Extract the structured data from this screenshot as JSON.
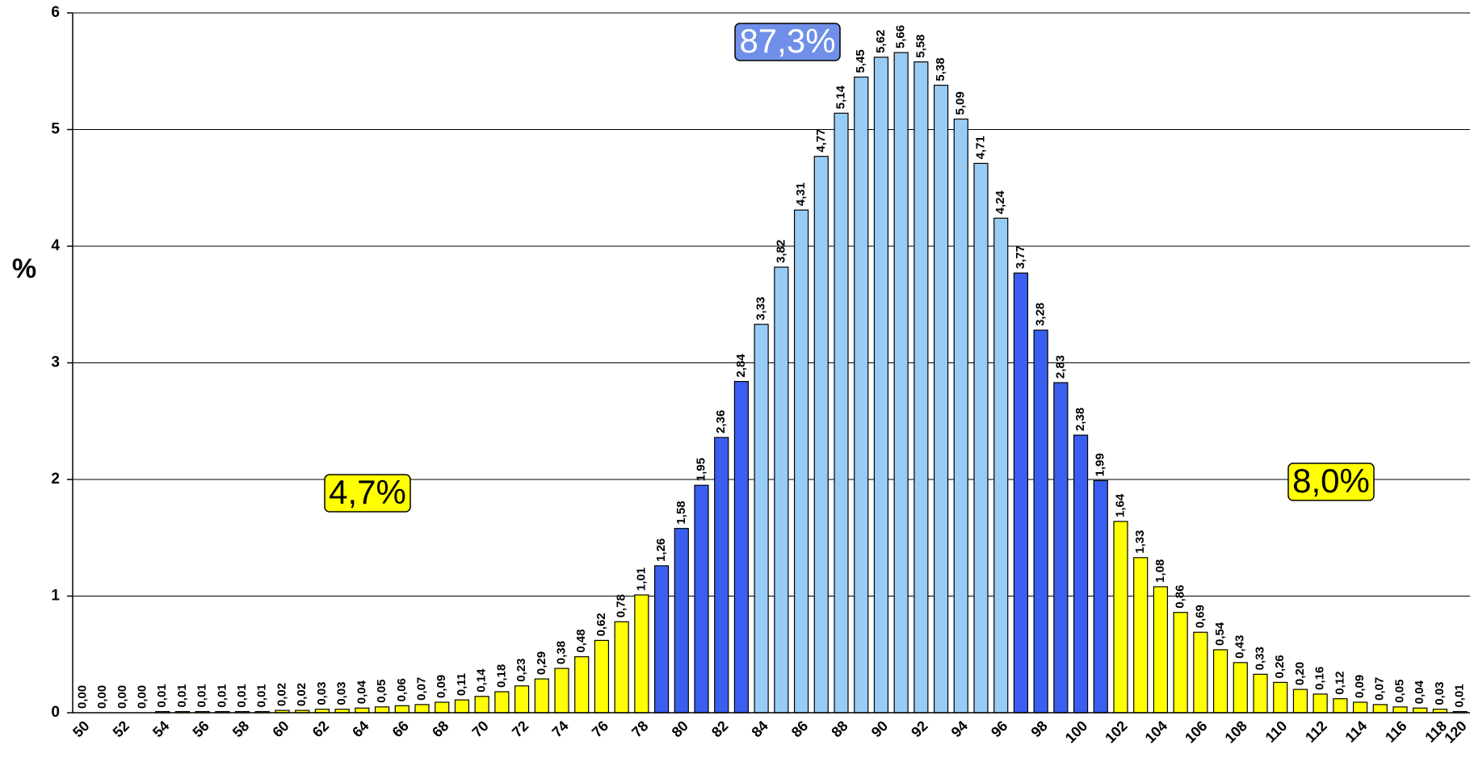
{
  "chart_data": {
    "type": "bar",
    "y_label": "%",
    "categories": [
      "50",
      null,
      "52",
      null,
      "54",
      null,
      "56",
      null,
      "58",
      null,
      "60",
      null,
      "62",
      null,
      "64",
      null,
      "66",
      null,
      "68",
      null,
      "70",
      null,
      "72",
      null,
      "74",
      null,
      "76",
      null,
      "78",
      null,
      "80",
      null,
      "82",
      null,
      "84",
      null,
      "86",
      null,
      "88",
      null,
      "90",
      null,
      "92",
      null,
      "94",
      null,
      "96",
      null,
      "98",
      null,
      "100",
      null,
      "102",
      null,
      "104",
      null,
      "106",
      null,
      "108",
      null,
      "110",
      null,
      "112",
      null,
      "114",
      null,
      "116",
      null,
      "118",
      "120"
    ],
    "values": [
      0,
      0,
      0,
      0,
      0.01,
      0.01,
      0.01,
      0.01,
      0.01,
      0.01,
      0.02,
      0.02,
      0.03,
      0.03,
      0.04,
      0.05,
      0.06,
      0.07,
      0.09,
      0.11,
      0.14,
      0.18,
      0.23,
      0.29,
      0.38,
      0.48,
      0.62,
      0.78,
      1.01,
      1.26,
      1.58,
      1.95,
      2.36,
      2.84,
      3.33,
      3.82,
      4.31,
      4.77,
      5.14,
      5.45,
      5.62,
      5.66,
      5.58,
      5.38,
      5.09,
      4.71,
      4.24,
      3.77,
      3.28,
      2.83,
      2.38,
      1.99,
      1.64,
      1.33,
      1.08,
      0.86,
      0.69,
      0.54,
      0.43,
      0.33,
      0.26,
      0.2,
      0.16,
      0.12,
      0.09,
      0.07,
      0.05,
      0.04,
      0.03,
      0.01
    ],
    "value_labels": [
      "0,00",
      "0,00",
      "0,00",
      "0,00",
      "0,01",
      "0,01",
      "0,01",
      "0,01",
      "0,01",
      "0,01",
      "0,02",
      "0,02",
      "0,03",
      "0,03",
      "0,04",
      "0,05",
      "0,06",
      "0,07",
      "0,09",
      "0,11",
      "0,14",
      "0,18",
      "0,23",
      "0,29",
      "0,38",
      "0,48",
      "0,62",
      "0,78",
      "1,01",
      "1,26",
      "1,58",
      "1,95",
      "2,36",
      "2,84",
      "3,33",
      "3,82",
      "4,31",
      "4,77",
      "5,14",
      "5,45",
      "5,62",
      "5,66",
      "5,58",
      "5,38",
      "5,09",
      "4,71",
      "4,24",
      "3,77",
      "3,28",
      "2,83",
      "2,38",
      "1,99",
      "1,64",
      "1,33",
      "1,08",
      "0,86",
      "0,69",
      "0,54",
      "0,43",
      "0,33",
      "0,26",
      "0,20",
      "0,16",
      "0,12",
      "0,09",
      "0,07",
      "0,05",
      "0,04",
      "0,03",
      "0,01"
    ],
    "colors": [
      "#ffff00",
      "#ffff00",
      "#ffff00",
      "#ffff00",
      "#ffff00",
      "#ffff00",
      "#ffff00",
      "#ffff00",
      "#ffff00",
      "#ffff00",
      "#ffff00",
      "#ffff00",
      "#ffff00",
      "#ffff00",
      "#ffff00",
      "#ffff00",
      "#ffff00",
      "#ffff00",
      "#ffff00",
      "#ffff00",
      "#ffff00",
      "#ffff00",
      "#ffff00",
      "#ffff00",
      "#ffff00",
      "#ffff00",
      "#ffff00",
      "#ffff00",
      "#ffff00",
      "#3a5ff0",
      "#3a5ff0",
      "#3a5ff0",
      "#3a5ff0",
      "#3a5ff0",
      "#99ccf5",
      "#99ccf5",
      "#99ccf5",
      "#99ccf5",
      "#99ccf5",
      "#99ccf5",
      "#99ccf5",
      "#99ccf5",
      "#99ccf5",
      "#99ccf5",
      "#99ccf5",
      "#99ccf5",
      "#99ccf5",
      "#3a5ff0",
      "#3a5ff0",
      "#3a5ff0",
      "#3a5ff0",
      "#3a5ff0",
      "#ffff00",
      "#ffff00",
      "#ffff00",
      "#ffff00",
      "#ffff00",
      "#ffff00",
      "#ffff00",
      "#ffff00",
      "#ffff00",
      "#ffff00",
      "#ffff00",
      "#ffff00",
      "#ffff00",
      "#ffff00",
      "#ffff00",
      "#ffff00",
      "#ffff00",
      "#ffff00"
    ],
    "ylim": [
      0,
      6
    ],
    "yticks": [
      0,
      1,
      2,
      3,
      4,
      5,
      6
    ],
    "grid": true,
    "annotations": [
      {
        "text": "87,3%",
        "color": "#6f8fe8"
      },
      {
        "text": "4,7%",
        "color": "#ffff00"
      },
      {
        "text": "8,0%",
        "color": "#ffff00"
      }
    ]
  }
}
